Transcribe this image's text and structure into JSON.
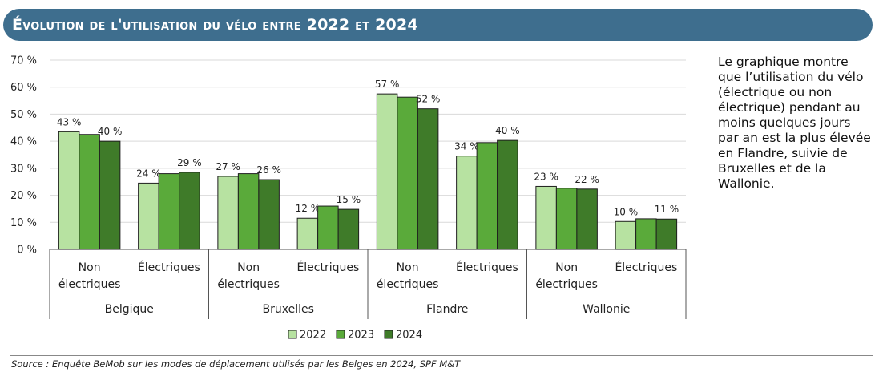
{
  "header": {
    "title": "Évolution de l'utilisation du vélo entre 2022 et 2024"
  },
  "sidebar": {
    "text": "Le graphique montre que l’utilisation du vélo (électrique ou non électrique) pendant au moins quelques jours par an est la plus élevée en Flandre, suivie de Bruxelles et de la Wallonie."
  },
  "footer": {
    "source": "Source : Enquête BeMob sur les modes de déplacement utilisés par les Belges en 2024, SPF M&T"
  },
  "colors": {
    "banner": "#3e6e8e",
    "s2022": "#b7e2a1",
    "s2023": "#5aaa3a",
    "s2024": "#3f7b29"
  },
  "chart_data": {
    "type": "bar",
    "title": "",
    "xlabel": "",
    "ylabel": "",
    "ylim": [
      0,
      70
    ],
    "yticks": [
      0,
      10,
      20,
      30,
      40,
      50,
      60,
      70
    ],
    "ytick_labels": [
      "0 %",
      "10 %",
      "20 %",
      "30 %",
      "40 %",
      "50 %",
      "60 %",
      "70 %"
    ],
    "grid": true,
    "legend_position": "bottom-center",
    "groups": [
      {
        "region": "Belgique",
        "categories": [
          {
            "label_lines": [
              "Non",
              "électriques"
            ],
            "values": [
              43.5,
              42.5,
              40
            ],
            "labels": [
              "43 %",
              "",
              "40 %"
            ]
          },
          {
            "label_lines": [
              "Électriques"
            ],
            "values": [
              24.5,
              28,
              28.5
            ],
            "labels": [
              "24 %",
              "",
              "29 %"
            ]
          }
        ]
      },
      {
        "region": "Bruxelles",
        "categories": [
          {
            "label_lines": [
              "Non",
              "électriques"
            ],
            "values": [
              27,
              28,
              25.8
            ],
            "labels": [
              "27 %",
              "",
              "26 %"
            ]
          },
          {
            "label_lines": [
              "Électriques"
            ],
            "values": [
              11.5,
              16,
              14.8
            ],
            "labels": [
              "12 %",
              "",
              "15 %"
            ]
          }
        ]
      },
      {
        "region": "Flandre",
        "categories": [
          {
            "label_lines": [
              "Non",
              "électriques"
            ],
            "values": [
              57.5,
              56.3,
              52
            ],
            "labels": [
              "57 %",
              "",
              "52 %"
            ]
          },
          {
            "label_lines": [
              "Électriques"
            ],
            "values": [
              34.5,
              39.5,
              40.3
            ],
            "labels": [
              "34 %",
              "",
              "40 %"
            ]
          }
        ]
      },
      {
        "region": "Wallonie",
        "categories": [
          {
            "label_lines": [
              "Non",
              "électriques"
            ],
            "values": [
              23.3,
              22.6,
              22.3
            ],
            "labels": [
              "23 %",
              "",
              "22 %"
            ]
          },
          {
            "label_lines": [
              "Électriques"
            ],
            "values": [
              10.3,
              11.3,
              11.2
            ],
            "labels": [
              "10 %",
              "",
              "11 %"
            ]
          }
        ]
      }
    ],
    "series": [
      {
        "name": "2022"
      },
      {
        "name": "2023"
      },
      {
        "name": "2024"
      }
    ]
  }
}
